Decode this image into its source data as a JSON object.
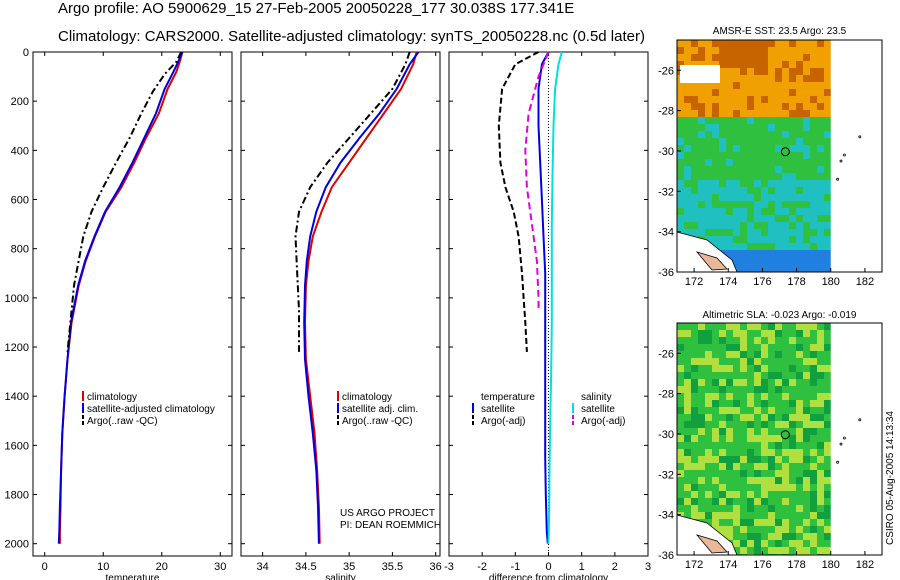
{
  "header": {
    "line1": "Argo profile: AO 5900629_15 27-Feb-2005 20050228_177 30.038S 177.341E",
    "line2": "Climatology: CARS2000. Satellite-adjusted climatology: synTS_20050228.nc (0.5d later)"
  },
  "credit": {
    "project": "US ARGO PROJECT",
    "pi": "PI: DEAN ROEMMICH",
    "stamp": "CSIRO 05-Aug-2005 14:13:34"
  },
  "colors": {
    "climatology": "#e00000",
    "satellite": "#0000e0",
    "argo": "#000000",
    "sal_satellite": "#00e0e0",
    "sal_argo": "#e000e0"
  },
  "chart_data": [
    {
      "type": "line",
      "id": "temperature",
      "xlabel": "temperature",
      "ylabel": "",
      "xlim": [
        -2,
        32
      ],
      "ylim": [
        0,
        2050
      ],
      "y_reversed": true,
      "xticks": [
        0,
        10,
        20,
        30
      ],
      "yticks": [
        0,
        200,
        400,
        600,
        800,
        1000,
        1200,
        1400,
        1600,
        1800,
        2000
      ],
      "legend": [
        "climatology",
        "satellite-adjusted climatology",
        "Argo(..raw -QC)"
      ],
      "series": [
        {
          "name": "climatology",
          "color": "#e00000",
          "dash": "",
          "x": [
            23.5,
            23.2,
            22.5,
            21.0,
            19.5,
            17.3,
            15.3,
            13.1,
            10.4,
            8.6,
            7.0,
            5.8,
            4.6,
            3.9,
            3.4,
            3.0,
            2.8,
            2.7,
            2.6,
            2.6
          ],
          "y": [
            0,
            30,
            80,
            150,
            250,
            350,
            450,
            550,
            650,
            750,
            850,
            950,
            1100,
            1250,
            1400,
            1550,
            1700,
            1850,
            1950,
            2000
          ]
        },
        {
          "name": "satellite-adjusted climatology",
          "color": "#0000e0",
          "dash": "",
          "x": [
            23.5,
            23.0,
            22.0,
            20.5,
            19.0,
            17.0,
            15.0,
            12.8,
            10.3,
            8.5,
            6.9,
            5.7,
            4.5,
            3.9,
            3.4,
            3.0,
            2.8,
            2.6,
            2.5,
            2.4
          ],
          "y": [
            0,
            30,
            80,
            150,
            250,
            350,
            450,
            550,
            650,
            750,
            850,
            950,
            1100,
            1250,
            1400,
            1550,
            1700,
            1850,
            1950,
            2000
          ]
        },
        {
          "name": "Argo(..raw -QC)",
          "color": "#000000",
          "dash": "7,3,2,3",
          "x": [
            23.3,
            22.5,
            20.5,
            18.5,
            16.5,
            14.5,
            12.2,
            10.0,
            8.0,
            6.6,
            5.0,
            3.9
          ],
          "y": [
            0,
            40,
            90,
            160,
            250,
            350,
            450,
            550,
            650,
            750,
            950,
            1220
          ]
        }
      ]
    },
    {
      "type": "line",
      "id": "salinity",
      "xlabel": "salinity",
      "ylabel": "",
      "xlim": [
        33.75,
        36.05
      ],
      "ylim": [
        0,
        2050
      ],
      "y_reversed": true,
      "xticks": [
        34,
        34.5,
        35,
        35.5,
        36
      ],
      "legend": [
        "climatology",
        "satellite adj. clim.",
        "Argo(..raw -QC)"
      ],
      "series": [
        {
          "name": "climatology",
          "color": "#e00000",
          "dash": "",
          "x": [
            35.78,
            35.74,
            35.6,
            35.4,
            35.2,
            35.0,
            34.8,
            34.68,
            34.58,
            34.53,
            34.5,
            34.49,
            34.5,
            34.55,
            34.6,
            34.63,
            34.65,
            34.66
          ],
          "y": [
            0,
            50,
            150,
            250,
            350,
            450,
            550,
            650,
            750,
            850,
            950,
            1100,
            1250,
            1400,
            1550,
            1700,
            1850,
            2000
          ]
        },
        {
          "name": "satellite adj. clim.",
          "color": "#0000e0",
          "dash": "",
          "x": [
            35.8,
            35.7,
            35.55,
            35.35,
            35.12,
            34.9,
            34.73,
            34.62,
            34.55,
            34.51,
            34.49,
            34.48,
            34.49,
            34.53,
            34.58,
            34.62,
            34.64,
            34.65
          ],
          "y": [
            0,
            50,
            150,
            250,
            350,
            450,
            550,
            650,
            750,
            850,
            950,
            1100,
            1250,
            1400,
            1550,
            1700,
            1850,
            2000
          ]
        },
        {
          "name": "Argo(..raw -QC)",
          "color": "#000000",
          "dash": "7,3,2,3",
          "x": [
            35.7,
            35.65,
            35.5,
            35.25,
            35.0,
            34.75,
            34.55,
            34.42,
            34.38,
            34.4,
            34.42,
            34.42
          ],
          "y": [
            0,
            50,
            150,
            250,
            350,
            450,
            550,
            650,
            750,
            900,
            1050,
            1220
          ]
        }
      ]
    },
    {
      "type": "line",
      "id": "difference",
      "xlabel": "difference from climatology",
      "ylabel": "",
      "xlim": [
        -3,
        3
      ],
      "ylim": [
        0,
        2050
      ],
      "y_reversed": true,
      "xticks": [
        -3,
        -2,
        -1,
        0,
        1,
        2,
        3
      ],
      "legend": {
        "left_title": "temperature",
        "left": [
          "satellite",
          "Argo(-adj)"
        ],
        "right_title": "salinity",
        "right": [
          "satellite",
          "Argo(-adj)"
        ]
      },
      "series": [
        {
          "name": "temperature satellite",
          "color": "#0000e0",
          "dash": "",
          "x": [
            0.0,
            -0.2,
            -0.3,
            -0.3,
            -0.25,
            -0.2,
            -0.15,
            -0.1,
            -0.1,
            -0.1,
            -0.1,
            -0.1,
            -0.1,
            -0.08,
            -0.05,
            -0.02
          ],
          "y": [
            0,
            50,
            150,
            300,
            450,
            600,
            750,
            900,
            1050,
            1200,
            1350,
            1500,
            1650,
            1800,
            1950,
            2000
          ]
        },
        {
          "name": "temperature Argo(-adj)",
          "color": "#000000",
          "dash": "6,3",
          "x": [
            -0.3,
            -1.0,
            -1.4,
            -1.5,
            -1.45,
            -1.3,
            -1.05,
            -0.9,
            -0.8,
            -0.75,
            -0.7,
            -0.65
          ],
          "y": [
            0,
            50,
            150,
            300,
            450,
            550,
            650,
            750,
            900,
            1000,
            1100,
            1220
          ]
        },
        {
          "name": "salinity satellite",
          "color": "#00e0e0",
          "dash": "",
          "x": [
            0.4,
            0.3,
            0.2,
            0.15,
            0.12,
            0.1,
            0.1,
            0.1,
            0.08,
            0.05,
            0.03,
            0.02,
            0.0
          ],
          "y": [
            0,
            50,
            150,
            300,
            500,
            700,
            900,
            1100,
            1300,
            1500,
            1700,
            1850,
            2000
          ]
        },
        {
          "name": "salinity Argo(-adj)",
          "color": "#e000e0",
          "dash": "7,4",
          "x": [
            0.0,
            -0.3,
            -0.6,
            -0.7,
            -0.65,
            -0.5,
            -0.35,
            -0.3,
            -0.3
          ],
          "y": [
            0,
            100,
            250,
            400,
            550,
            700,
            850,
            1000,
            1050
          ]
        }
      ]
    }
  ],
  "maps": [
    {
      "id": "sst",
      "title": "AMSR-E SST: 23.5 Argo: 23.5",
      "xticks": [
        172,
        174,
        176,
        178,
        180,
        182
      ],
      "yticks": [
        -26,
        -28,
        -30,
        -32,
        -34,
        -36
      ],
      "xlim": [
        171,
        183
      ],
      "ylim": [
        -36,
        -24.5
      ],
      "marker": [
        177.341,
        -30.038
      ],
      "data_edge_lon": 180,
      "colors": {
        "warm": "#f0a000",
        "hot": "#c86400",
        "mid": "#30c040",
        "cool": "#20c0c0",
        "cold": "#2080e0",
        "land": "#e8b898"
      }
    },
    {
      "id": "sla",
      "title": "Altimetric SLA: -0.023 Argo: -0.019",
      "xticks": [
        172,
        174,
        176,
        178,
        180,
        182
      ],
      "yticks": [
        -26,
        -28,
        -30,
        -32,
        -34,
        -36
      ],
      "xlim": [
        171,
        183
      ],
      "ylim": [
        -36,
        -24.5
      ],
      "marker": [
        177.341,
        -30.038
      ],
      "data_edge_lon": 180,
      "colors": {
        "base": "#30c040",
        "high": "#b0e040",
        "low": "#10a040",
        "land": "#e8b898"
      }
    }
  ]
}
